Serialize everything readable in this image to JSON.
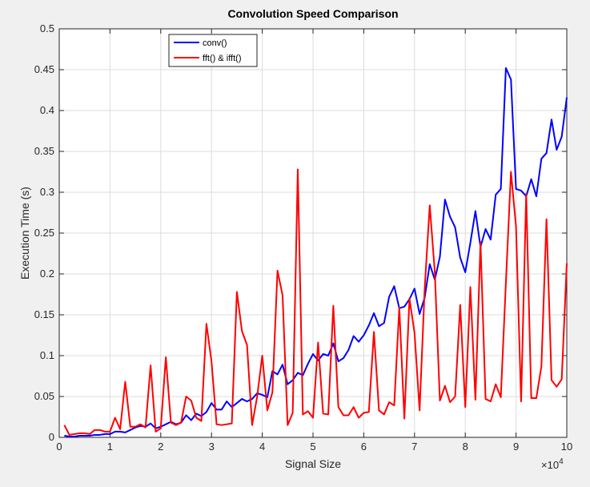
{
  "chart_data": {
    "type": "line",
    "title": "Convolution Speed Comparison",
    "x_label": "Signal Size",
    "y_label": "Execution Time (s)",
    "x_multiplier": {
      "base": "×10",
      "exponent": "4"
    },
    "x": [
      0.1,
      0.2,
      0.3,
      0.4,
      0.5,
      0.6,
      0.7,
      0.8,
      0.9,
      1.0,
      1.1,
      1.2,
      1.3,
      1.4,
      1.5,
      1.6,
      1.7,
      1.8,
      1.9,
      2.0,
      2.1,
      2.2,
      2.3,
      2.4,
      2.5,
      2.6,
      2.7,
      2.8,
      2.9,
      3.0,
      3.1,
      3.2,
      3.3,
      3.4,
      3.5,
      3.6,
      3.7,
      3.8,
      3.9,
      4.0,
      4.1,
      4.2,
      4.3,
      4.4,
      4.5,
      4.6,
      4.7,
      4.8,
      4.9,
      5.0,
      5.1,
      5.2,
      5.3,
      5.4,
      5.5,
      5.6,
      5.7,
      5.8,
      5.9,
      6.0,
      6.1,
      6.2,
      6.3,
      6.4,
      6.5,
      6.6,
      6.7,
      6.8,
      6.9,
      7.0,
      7.1,
      7.2,
      7.3,
      7.4,
      7.5,
      7.6,
      7.7,
      7.8,
      7.9,
      8.0,
      8.1,
      8.2,
      8.3,
      8.4,
      8.5,
      8.6,
      8.7,
      8.8,
      8.9,
      9.0,
      9.1,
      9.2,
      9.3,
      9.4,
      9.5,
      9.6,
      9.7,
      9.8,
      9.9,
      10.0
    ],
    "series": [
      {
        "name": "conv()",
        "color": "#0000ff",
        "values": [
          0.002,
          0.001,
          0.001,
          0.002,
          0.002,
          0.002,
          0.003,
          0.003,
          0.004,
          0.004,
          0.007,
          0.007,
          0.006,
          0.009,
          0.012,
          0.014,
          0.013,
          0.017,
          0.011,
          0.013,
          0.016,
          0.019,
          0.016,
          0.018,
          0.027,
          0.021,
          0.029,
          0.026,
          0.031,
          0.042,
          0.034,
          0.034,
          0.044,
          0.037,
          0.042,
          0.047,
          0.044,
          0.047,
          0.054,
          0.052,
          0.049,
          0.081,
          0.077,
          0.089,
          0.065,
          0.07,
          0.079,
          0.076,
          0.09,
          0.102,
          0.094,
          0.102,
          0.1,
          0.115,
          0.093,
          0.097,
          0.107,
          0.124,
          0.117,
          0.125,
          0.137,
          0.152,
          0.136,
          0.14,
          0.172,
          0.185,
          0.158,
          0.16,
          0.169,
          0.182,
          0.151,
          0.171,
          0.212,
          0.193,
          0.221,
          0.291,
          0.27,
          0.257,
          0.22,
          0.202,
          0.238,
          0.277,
          0.233,
          0.255,
          0.242,
          0.297,
          0.304,
          0.452,
          0.438,
          0.304,
          0.302,
          0.295,
          0.316,
          0.295,
          0.341,
          0.348,
          0.389,
          0.352,
          0.368,
          0.416
        ]
      },
      {
        "name": "fft() & ifft()",
        "color": "#ff0000",
        "values": [
          0.015,
          0.003,
          0.004,
          0.005,
          0.005,
          0.004,
          0.009,
          0.009,
          0.007,
          0.007,
          0.024,
          0.01,
          0.068,
          0.013,
          0.013,
          0.016,
          0.012,
          0.088,
          0.007,
          0.011,
          0.098,
          0.018,
          0.015,
          0.018,
          0.05,
          0.045,
          0.024,
          0.02,
          0.139,
          0.093,
          0.016,
          0.015,
          0.016,
          0.017,
          0.178,
          0.13,
          0.113,
          0.015,
          0.05,
          0.1,
          0.033,
          0.055,
          0.204,
          0.174,
          0.015,
          0.03,
          0.328,
          0.028,
          0.032,
          0.024,
          0.116,
          0.029,
          0.028,
          0.161,
          0.037,
          0.027,
          0.027,
          0.037,
          0.024,
          0.03,
          0.031,
          0.129,
          0.033,
          0.028,
          0.043,
          0.039,
          0.159,
          0.023,
          0.17,
          0.128,
          0.033,
          0.182,
          0.284,
          0.202,
          0.045,
          0.063,
          0.043,
          0.05,
          0.162,
          0.037,
          0.184,
          0.046,
          0.239,
          0.047,
          0.044,
          0.065,
          0.049,
          0.189,
          0.325,
          0.258,
          0.044,
          0.298,
          0.048,
          0.048,
          0.087,
          0.267,
          0.07,
          0.062,
          0.071,
          0.213
        ]
      }
    ],
    "xlim": [
      0,
      10
    ],
    "xticks": [
      0,
      1,
      2,
      3,
      4,
      5,
      6,
      7,
      8,
      9,
      10
    ],
    "ylim": [
      0,
      0.5
    ],
    "yticks": [
      0,
      0.05,
      0.1,
      0.15,
      0.2,
      0.25,
      0.3,
      0.35,
      0.4,
      0.45,
      0.5
    ],
    "grid": true,
    "legend": true
  }
}
